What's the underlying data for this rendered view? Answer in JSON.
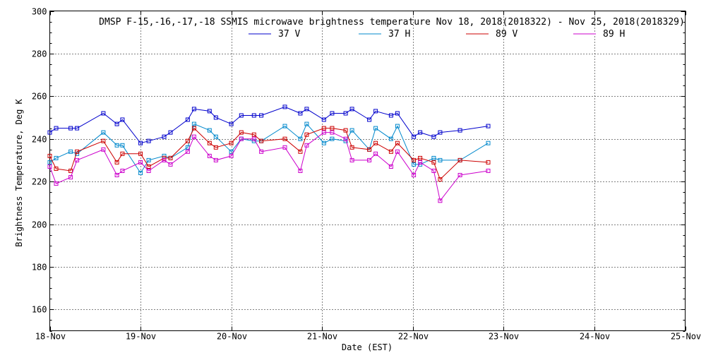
{
  "chart_data": {
    "type": "line",
    "title": "DMSP F-15,-16,-17,-18 SSMIS microwave brightness temperature Nov 18, 2018(2018322) - Nov 25, 2018(2018329)",
    "xlabel": "Date (EST)",
    "ylabel": "Brightness Temperature, Deg K",
    "xlim": [
      0,
      7
    ],
    "ylim": [
      150,
      300
    ],
    "x_ticks": [
      0,
      1,
      2,
      3,
      4,
      5,
      6,
      7
    ],
    "x_tick_labels": [
      "18-Nov",
      "19-Nov",
      "20-Nov",
      "21-Nov",
      "22-Nov",
      "23-Nov",
      "24-Nov",
      "25-Nov"
    ],
    "y_ticks": [
      160,
      180,
      200,
      220,
      240,
      260,
      280,
      300
    ],
    "y_tick_labels": [
      "160",
      "180",
      "200",
      "220",
      "240",
      "260",
      "280",
      "300"
    ],
    "grid": true,
    "legend_position": "top-center",
    "series": [
      {
        "name": "37 V",
        "color": "#0000cc",
        "points": [
          [
            0.0,
            243
          ],
          [
            0.07,
            245
          ],
          [
            0.23,
            245
          ],
          [
            0.3,
            245
          ],
          [
            0.59,
            252
          ],
          [
            0.74,
            247
          ],
          [
            0.8,
            249
          ],
          [
            1.0,
            238
          ],
          [
            1.09,
            239
          ],
          [
            1.26,
            241
          ],
          [
            1.33,
            243
          ],
          [
            1.52,
            249
          ],
          [
            1.59,
            254
          ],
          [
            1.76,
            253
          ],
          [
            1.83,
            250
          ],
          [
            2.0,
            247
          ],
          [
            2.11,
            251
          ],
          [
            2.25,
            251
          ],
          [
            2.33,
            251
          ],
          [
            2.59,
            255
          ],
          [
            2.76,
            252
          ],
          [
            2.83,
            254
          ],
          [
            3.02,
            249
          ],
          [
            3.11,
            252
          ],
          [
            3.26,
            252
          ],
          [
            3.33,
            254
          ],
          [
            3.52,
            249
          ],
          [
            3.59,
            253
          ],
          [
            3.76,
            251
          ],
          [
            3.83,
            252
          ],
          [
            4.01,
            241
          ],
          [
            4.08,
            243
          ],
          [
            4.23,
            241
          ],
          [
            4.3,
            243
          ],
          [
            4.52,
            244
          ],
          [
            4.83,
            246
          ]
        ]
      },
      {
        "name": "37 H",
        "color": "#0088cc",
        "points": [
          [
            0.0,
            229
          ],
          [
            0.07,
            231
          ],
          [
            0.23,
            234
          ],
          [
            0.3,
            233
          ],
          [
            0.59,
            243
          ],
          [
            0.74,
            237
          ],
          [
            0.8,
            237
          ],
          [
            1.0,
            224
          ],
          [
            1.09,
            230
          ],
          [
            1.26,
            232
          ],
          [
            1.33,
            231
          ],
          [
            1.52,
            236
          ],
          [
            1.59,
            247
          ],
          [
            1.76,
            244
          ],
          [
            1.83,
            241
          ],
          [
            2.0,
            234
          ],
          [
            2.11,
            240
          ],
          [
            2.25,
            239
          ],
          [
            2.33,
            239
          ],
          [
            2.59,
            246
          ],
          [
            2.76,
            240
          ],
          [
            2.83,
            247
          ],
          [
            3.02,
            238
          ],
          [
            3.11,
            240
          ],
          [
            3.26,
            239
          ],
          [
            3.33,
            244
          ],
          [
            3.52,
            235
          ],
          [
            3.59,
            245
          ],
          [
            3.76,
            240
          ],
          [
            3.83,
            246
          ],
          [
            4.01,
            228
          ],
          [
            4.08,
            228
          ],
          [
            4.23,
            231
          ],
          [
            4.3,
            230
          ],
          [
            4.52,
            230
          ],
          [
            4.83,
            238
          ]
        ]
      },
      {
        "name": "89 V",
        "color": "#cc0000",
        "points": [
          [
            0.0,
            232
          ],
          [
            0.07,
            226
          ],
          [
            0.23,
            225
          ],
          [
            0.3,
            234
          ],
          [
            0.59,
            239
          ],
          [
            0.74,
            229
          ],
          [
            0.8,
            233
          ],
          [
            1.0,
            233
          ],
          [
            1.09,
            227
          ],
          [
            1.26,
            231
          ],
          [
            1.33,
            231
          ],
          [
            1.52,
            239
          ],
          [
            1.59,
            245
          ],
          [
            1.76,
            238
          ],
          [
            1.83,
            236
          ],
          [
            2.0,
            238
          ],
          [
            2.11,
            243
          ],
          [
            2.25,
            242
          ],
          [
            2.33,
            239
          ],
          [
            2.59,
            240
          ],
          [
            2.76,
            234
          ],
          [
            2.83,
            242
          ],
          [
            3.02,
            245
          ],
          [
            3.11,
            245
          ],
          [
            3.26,
            244
          ],
          [
            3.33,
            236
          ],
          [
            3.52,
            235
          ],
          [
            3.59,
            238
          ],
          [
            3.76,
            234
          ],
          [
            3.83,
            238
          ],
          [
            4.01,
            230
          ],
          [
            4.08,
            231
          ],
          [
            4.23,
            229
          ],
          [
            4.3,
            221
          ],
          [
            4.52,
            230
          ],
          [
            4.83,
            229
          ]
        ]
      },
      {
        "name": "89 H",
        "color": "#cc00cc",
        "points": [
          [
            0.0,
            227
          ],
          [
            0.07,
            219
          ],
          [
            0.23,
            222
          ],
          [
            0.3,
            230
          ],
          [
            0.59,
            235
          ],
          [
            0.74,
            223
          ],
          [
            0.8,
            225
          ],
          [
            1.0,
            229
          ],
          [
            1.09,
            225
          ],
          [
            1.26,
            230
          ],
          [
            1.33,
            228
          ],
          [
            1.52,
            234
          ],
          [
            1.59,
            241
          ],
          [
            1.76,
            232
          ],
          [
            1.83,
            230
          ],
          [
            2.0,
            232
          ],
          [
            2.11,
            240
          ],
          [
            2.25,
            240
          ],
          [
            2.33,
            234
          ],
          [
            2.59,
            236
          ],
          [
            2.76,
            225
          ],
          [
            2.83,
            237
          ],
          [
            3.02,
            243
          ],
          [
            3.11,
            243
          ],
          [
            3.26,
            240
          ],
          [
            3.33,
            230
          ],
          [
            3.52,
            230
          ],
          [
            3.59,
            233
          ],
          [
            3.76,
            227
          ],
          [
            3.83,
            234
          ],
          [
            4.01,
            223
          ],
          [
            4.08,
            229
          ],
          [
            4.23,
            225
          ],
          [
            4.3,
            211
          ],
          [
            4.52,
            223
          ],
          [
            4.83,
            225
          ]
        ]
      }
    ]
  }
}
